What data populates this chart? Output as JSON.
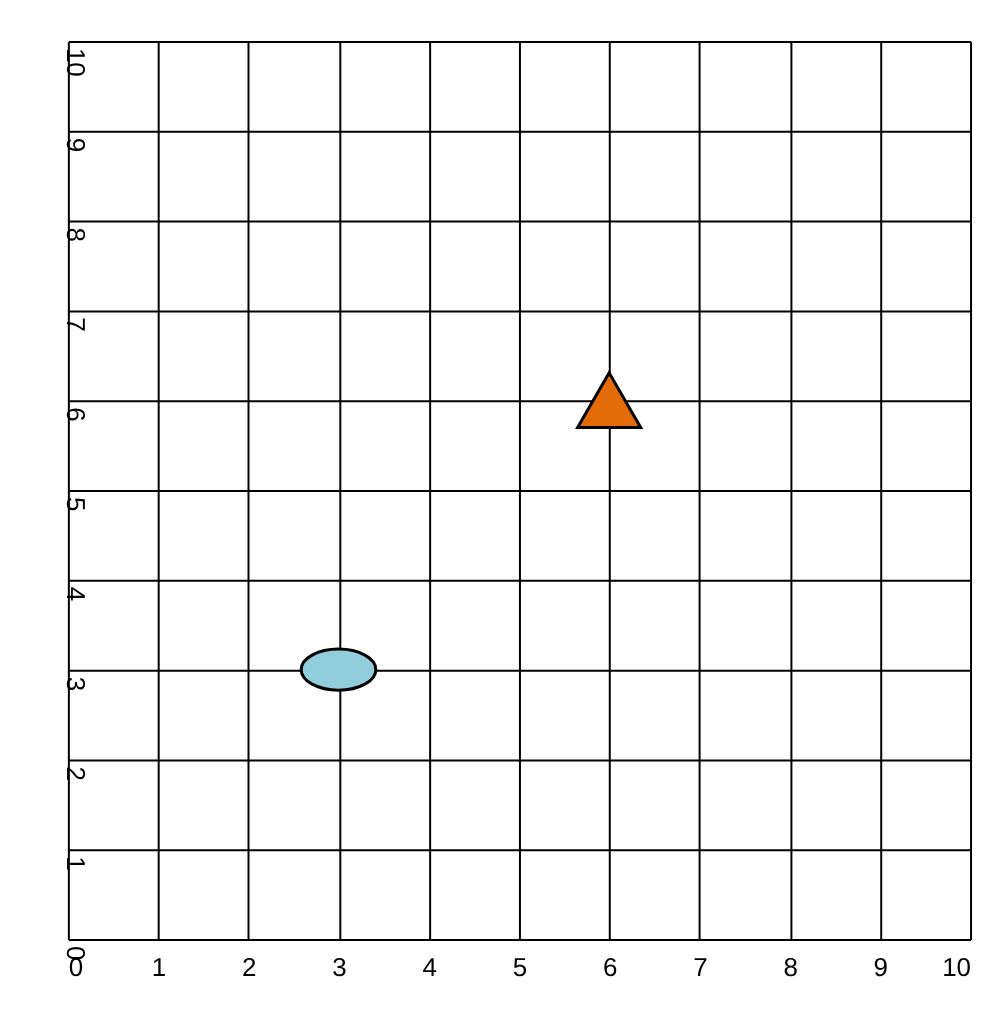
{
  "chart_data": {
    "type": "scatter",
    "xlim": [
      0,
      10
    ],
    "ylim": [
      0,
      10
    ],
    "xticks": [
      0,
      1,
      2,
      3,
      4,
      5,
      6,
      7,
      8,
      9,
      10
    ],
    "yticks": [
      0,
      1,
      2,
      3,
      4,
      5,
      6,
      7,
      8,
      9,
      10
    ],
    "grid": true,
    "series": [
      {
        "color": "#92cddc",
        "marker": "circle",
        "x": [
          3
        ],
        "values": [
          3
        ]
      },
      {
        "color": "#e36c09",
        "marker": "triangle",
        "x": [
          6
        ],
        "values": [
          6
        ]
      }
    ]
  }
}
